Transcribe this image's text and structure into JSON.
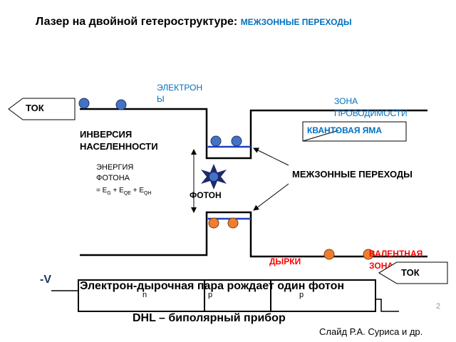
{
  "header": {
    "title": "Лазер на двойной гетероструктуре: ",
    "subtitle": "МЕЖЗОННЫЕ ПЕРЕХОДЫ"
  },
  "labels": {
    "current_left": "ТОК",
    "electrons": "ЭЛЕКТРОНЫ",
    "conduction_band": "ЗОНА ПРОВОДИМОСТИ",
    "quantum_well": "КВАНТОВАЯ ЯМА",
    "inversion": "ИНВЕРСИЯ НАСЕЛЕННОСТИ",
    "photon_energy": "ЭНЕРГИЯ ФОТОНА",
    "formula": [
      "= E",
      "G",
      " + E",
      "QE",
      " + E",
      "QH"
    ],
    "interband": "МЕЖЗОННЫЕ ПЕРЕХОДЫ",
    "photon": "ФОТОН",
    "holes": "ДЫРКИ",
    "valence_band": "ВАЛЕНТНАЯ ЗОНА",
    "current_right": "ТОК"
  },
  "device": {
    "voltage": "-V",
    "caption": "Электрон-дырочная пара рождает один фотон",
    "layers": [
      "n",
      "p",
      "p"
    ],
    "footer": "DHL – биполярный прибор"
  },
  "credit": "Слайд Р.А. Суриса и др.",
  "page_number": "2"
}
